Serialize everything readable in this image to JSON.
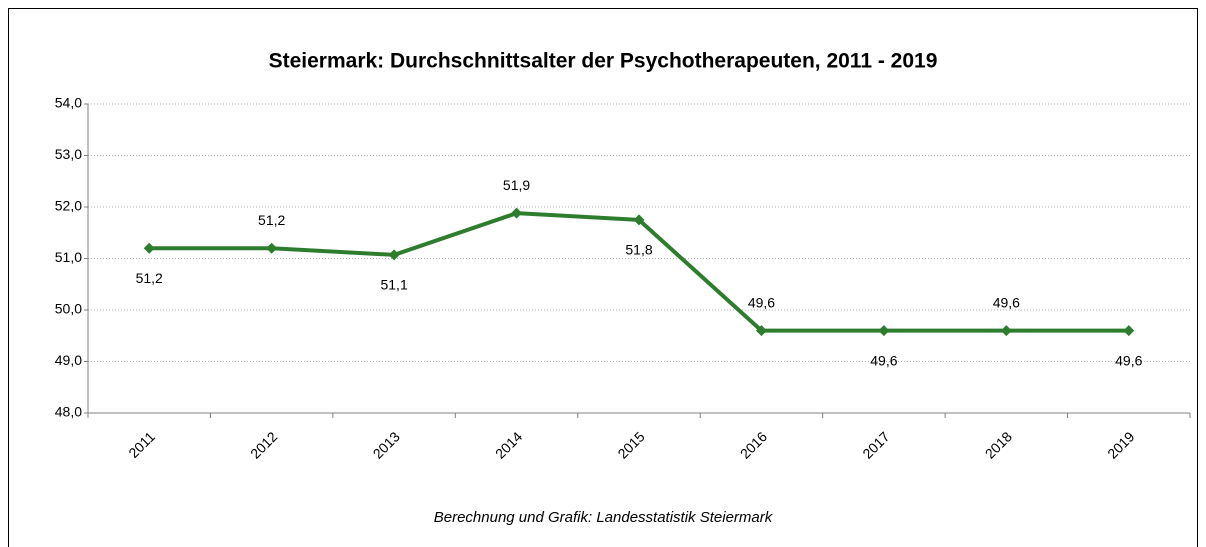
{
  "chart_data": {
    "type": "line",
    "title": "Steiermark: Durchschnittsalter der Psychotherapeuten, 2011 - 2019",
    "source": "Berechnung und Grafik: Landesstatistik Steiermark",
    "categories": [
      "2011",
      "2012",
      "2013",
      "2014",
      "2015",
      "2016",
      "2017",
      "2018",
      "2019"
    ],
    "series": [
      {
        "name": "Durchschnittsalter",
        "color": "#2e7d2e",
        "values": [
          51.2,
          51.2,
          51.07,
          51.88,
          51.75,
          49.6,
          49.6,
          49.6,
          49.6
        ],
        "value_labels": [
          "51,2",
          "51,2",
          "51,1",
          "51,9",
          "51,8",
          "49,6",
          "49,6",
          "49,6",
          "49,6"
        ]
      }
    ],
    "ylim": [
      48,
      54
    ],
    "yticks": [
      {
        "value": 48,
        "label": "48,0"
      },
      {
        "value": 49,
        "label": "49,0"
      },
      {
        "value": 50,
        "label": "50,0"
      },
      {
        "value": 51,
        "label": "51,0"
      },
      {
        "value": 52,
        "label": "52,0"
      },
      {
        "value": 53,
        "label": "53,0"
      },
      {
        "value": 54,
        "label": "54,0"
      }
    ],
    "grid": true
  }
}
